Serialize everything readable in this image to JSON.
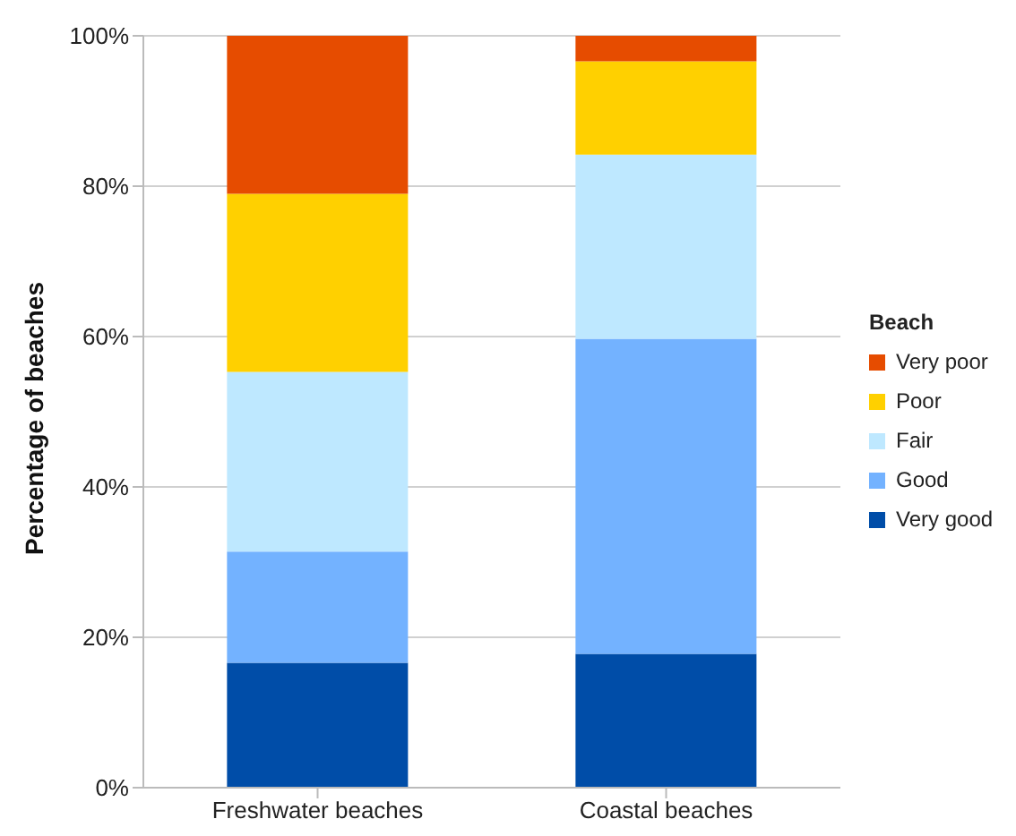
{
  "chart_data": {
    "type": "bar",
    "stacked": true,
    "ylabel": "Percentage of beaches",
    "legend_title": "Beach",
    "legend": "right",
    "grid": "y",
    "categories": [
      "Freshwater beaches",
      "Coastal beaches"
    ],
    "series": [
      {
        "name": "Very good",
        "color": "#004da8",
        "values": [
          16.6,
          17.8
        ]
      },
      {
        "name": "Good",
        "color": "#73b2ff",
        "values": [
          14.8,
          41.9
        ]
      },
      {
        "name": "Fair",
        "color": "#bee8ff",
        "values": [
          23.9,
          24.5
        ]
      },
      {
        "name": "Poor",
        "color": "#ffd000",
        "values": [
          23.7,
          12.4
        ]
      },
      {
        "name": "Very poor",
        "color": "#e64c00",
        "values": [
          21.0,
          3.4
        ]
      }
    ],
    "ylim": [
      0,
      100
    ],
    "yticks": [
      {
        "value": 0,
        "label": "0%"
      },
      {
        "value": 20,
        "label": "20%"
      },
      {
        "value": 40,
        "label": "40%"
      },
      {
        "value": 60,
        "label": "60%"
      },
      {
        "value": 80,
        "label": "80%"
      },
      {
        "value": 100,
        "label": "100%"
      }
    ]
  }
}
